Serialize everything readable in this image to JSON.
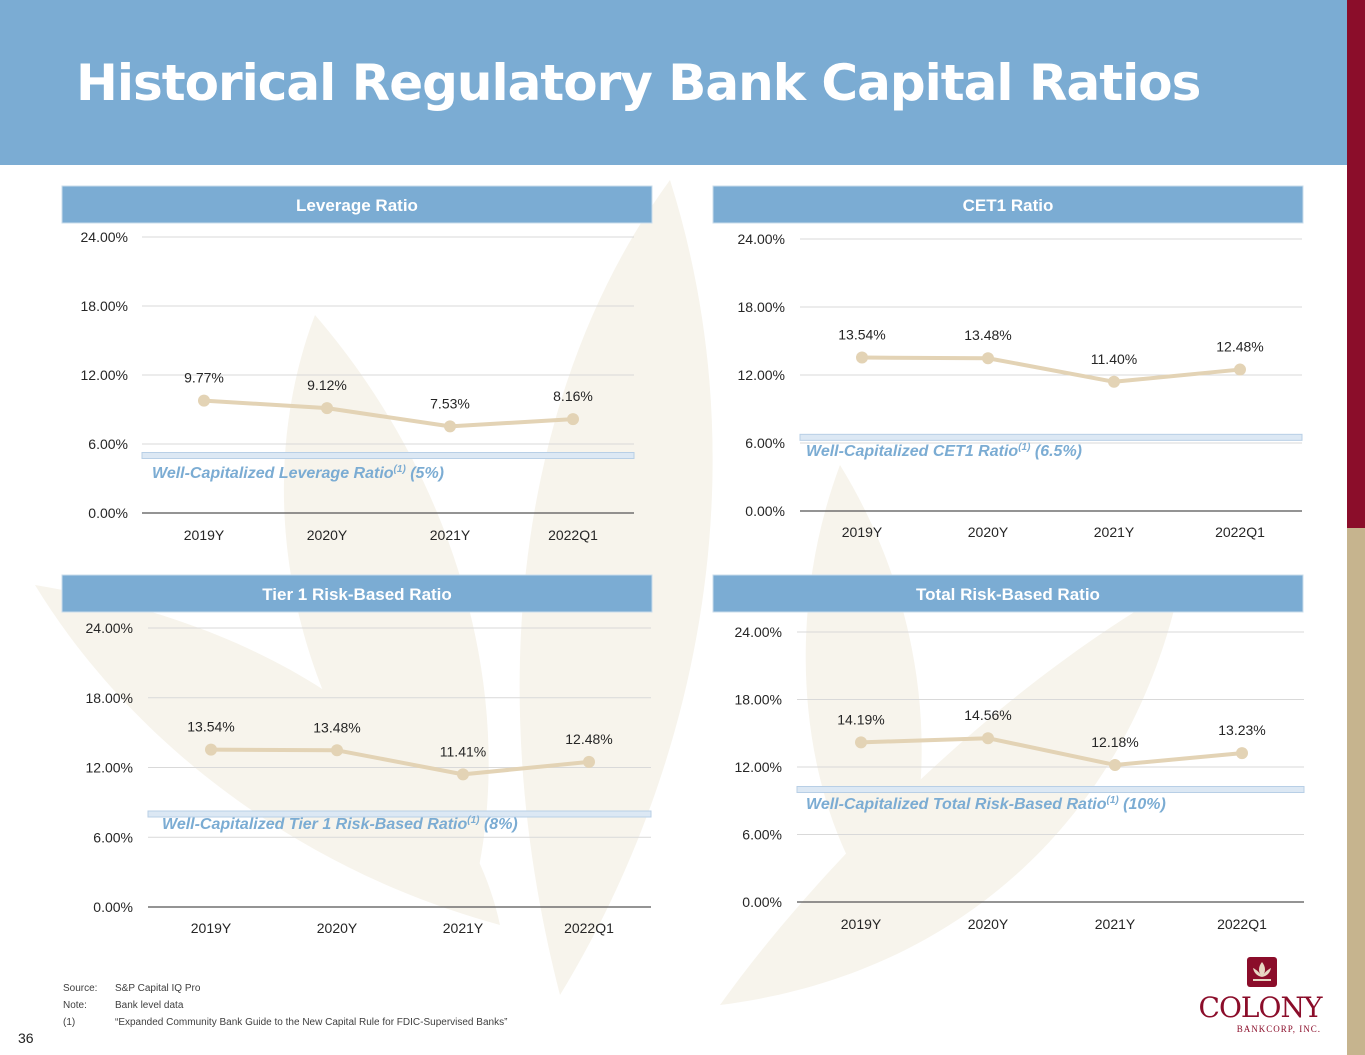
{
  "page": {
    "title": "Historical Regulatory Bank Capital Ratios",
    "page_number": "36"
  },
  "colors": {
    "banner": "#7BACD3",
    "accent_red": "#8B0D2A",
    "accent_gold": "#C6B48E",
    "line": "#E3D3B5",
    "benchmark_text": "#7BACD3",
    "benchmark_fill": "#DCE8F4"
  },
  "footnotes": [
    {
      "key": "Source:",
      "text": "S&P Capital IQ Pro"
    },
    {
      "key": "Note:",
      "text": "Bank level data"
    },
    {
      "key": "(1)",
      "text": "“Expanded Community Bank Guide to the New Capital Rule for FDIC-Supervised Banks”"
    }
  ],
  "logo": {
    "name": "COLONY",
    "sub": "BANKCORP, INC."
  },
  "chart_data": [
    {
      "type": "line",
      "title": "Leverage Ratio",
      "categories": [
        "2019Y",
        "2020Y",
        "2021Y",
        "2022Q1"
      ],
      "values": [
        9.77,
        9.12,
        7.53,
        8.16
      ],
      "value_labels": [
        "9.77%",
        "9.12%",
        "7.53%",
        "8.16%"
      ],
      "ylim": [
        0,
        24
      ],
      "yticks": [
        0,
        6,
        12,
        18,
        24
      ],
      "ytick_labels": [
        "0.00%",
        "6.00%",
        "12.00%",
        "18.00%",
        "24.00%"
      ],
      "benchmark": {
        "value": 5,
        "label": "Well-Capitalized Leverage Ratio",
        "sup": "(1)",
        "suffix": " (5%)"
      }
    },
    {
      "type": "line",
      "title": "CET1 Ratio",
      "categories": [
        "2019Y",
        "2020Y",
        "2021Y",
        "2022Q1"
      ],
      "values": [
        13.54,
        13.48,
        11.4,
        12.48
      ],
      "value_labels": [
        "13.54%",
        "13.48%",
        "11.40%",
        "12.48%"
      ],
      "ylim": [
        0,
        24
      ],
      "yticks": [
        0,
        6,
        12,
        18,
        24
      ],
      "ytick_labels": [
        "0.00%",
        "6.00%",
        "12.00%",
        "18.00%",
        "24.00%"
      ],
      "benchmark": {
        "value": 6.5,
        "label": "Well-Capitalized CET1 Ratio",
        "sup": "(1)",
        "suffix": " (6.5%)"
      }
    },
    {
      "type": "line",
      "title": "Tier 1 Risk-Based Ratio",
      "categories": [
        "2019Y",
        "2020Y",
        "2021Y",
        "2022Q1"
      ],
      "values": [
        13.54,
        13.48,
        11.41,
        12.48
      ],
      "value_labels": [
        "13.54%",
        "13.48%",
        "11.41%",
        "12.48%"
      ],
      "ylim": [
        0,
        24
      ],
      "yticks": [
        0,
        6,
        12,
        18,
        24
      ],
      "ytick_labels": [
        "0.00%",
        "6.00%",
        "12.00%",
        "18.00%",
        "24.00%"
      ],
      "benchmark": {
        "value": 8,
        "label": "Well-Capitalized Tier 1 Risk-Based Ratio",
        "sup": "(1)",
        "suffix": " (8%)"
      }
    },
    {
      "type": "line",
      "title": "Total Risk-Based Ratio",
      "categories": [
        "2019Y",
        "2020Y",
        "2021Y",
        "2022Q1"
      ],
      "values": [
        14.19,
        14.56,
        12.18,
        13.23
      ],
      "value_labels": [
        "14.19%",
        "14.56%",
        "12.18%",
        "13.23%"
      ],
      "ylim": [
        0,
        24
      ],
      "yticks": [
        0,
        6,
        12,
        18,
        24
      ],
      "ytick_labels": [
        "0.00%",
        "6.00%",
        "12.00%",
        "18.00%",
        "24.00%"
      ],
      "benchmark": {
        "value": 10,
        "label": "Well-Capitalized Total Risk-Based Ratio",
        "sup": "(1)",
        "suffix": " (10%)"
      }
    }
  ]
}
